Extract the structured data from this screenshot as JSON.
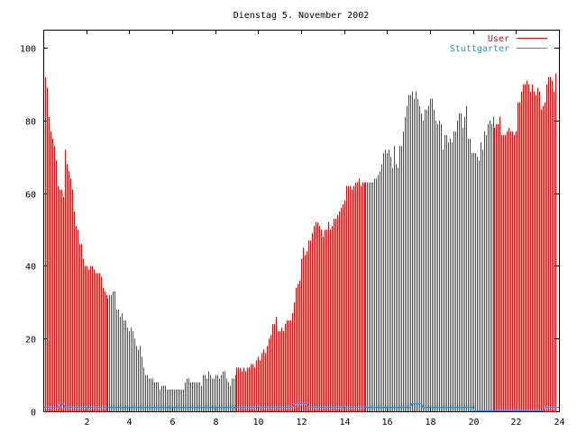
{
  "chart_data": {
    "type": "bar",
    "title": "Dienstag 5. November 2002",
    "xlabel": "",
    "ylabel": "",
    "xlim": [
      0,
      24
    ],
    "ylim": [
      0,
      105
    ],
    "x_step_hours": 0.0833333,
    "x_ticks": [
      2,
      4,
      6,
      8,
      10,
      12,
      14,
      16,
      18,
      20,
      22,
      24
    ],
    "x_tick_labels": [
      "2",
      "4",
      "6",
      "8",
      "10",
      "12",
      "14",
      "16",
      "18",
      "20",
      "22",
      "24"
    ],
    "y_ticks": [
      0,
      20,
      40,
      60,
      80,
      100
    ],
    "y_tick_labels": [
      "0",
      "20",
      "40",
      "60",
      "80",
      "100"
    ],
    "legend_placement": "top-right",
    "series": [
      {
        "name": "User",
        "style": "impulses",
        "color": "#ff0000",
        "values": [
          93,
          92,
          89,
          81,
          77,
          75,
          73,
          69,
          62,
          61,
          61,
          59,
          72,
          68,
          66,
          64,
          61,
          55,
          51,
          50,
          46,
          46,
          42,
          40,
          40,
          39,
          40,
          40,
          39,
          38,
          38,
          38,
          37,
          34,
          33,
          32,
          31,
          32,
          32,
          33,
          33,
          28,
          28,
          26,
          27,
          25,
          25,
          23,
          22,
          23,
          22,
          20,
          18,
          17,
          18,
          15,
          12,
          10,
          10,
          9,
          9,
          9,
          8,
          8,
          8,
          6,
          7,
          7,
          7,
          6,
          6,
          6,
          6,
          6,
          6,
          6,
          6,
          6,
          6,
          8,
          9,
          9,
          8,
          8,
          8,
          8,
          8,
          8,
          7,
          10,
          10,
          9,
          11,
          10,
          9,
          9,
          10,
          10,
          9,
          10,
          11,
          11,
          9,
          8,
          7,
          9,
          9,
          10,
          12,
          12,
          12,
          11,
          12,
          11,
          12,
          12,
          13,
          13,
          12,
          14,
          15,
          14,
          16,
          17,
          16,
          18,
          20,
          21,
          24,
          24,
          26,
          22,
          22,
          23,
          22,
          24,
          25,
          25,
          25,
          27,
          30,
          34,
          35,
          36,
          42,
          45,
          43,
          44,
          47,
          47,
          49,
          51,
          52,
          52,
          51,
          50,
          48,
          50,
          50,
          52,
          50,
          51,
          53,
          53,
          54,
          55,
          56,
          57,
          58,
          62,
          62,
          62,
          61,
          62,
          63,
          63,
          64,
          62,
          63,
          63,
          63,
          63,
          63,
          63,
          63,
          64,
          64,
          65,
          66,
          68,
          71,
          72,
          71,
          72,
          70,
          67,
          73,
          68,
          67,
          73,
          73,
          77,
          81,
          84,
          87,
          87,
          88,
          86,
          88,
          86,
          84,
          82,
          80,
          83,
          83,
          84,
          86,
          86,
          83,
          80,
          79,
          80,
          79,
          72,
          76,
          76,
          74,
          75,
          74,
          77,
          77,
          80,
          82,
          82,
          78,
          81,
          84,
          75,
          75,
          71,
          71,
          71,
          70,
          69,
          74,
          72,
          77,
          76,
          79,
          80,
          79,
          81,
          78,
          79,
          79,
          81,
          76,
          76,
          76,
          77,
          78,
          77,
          77,
          76,
          77,
          85,
          85,
          88,
          90,
          90,
          91,
          90,
          88,
          90,
          88,
          87,
          89,
          88,
          83,
          84,
          85,
          90,
          92,
          92,
          91,
          88,
          93
        ]
      },
      {
        "name": "Stuttgarter",
        "style": "lines",
        "color": "#1e90ff",
        "points": [
          [
            0,
            1
          ],
          [
            0.65,
            1
          ],
          [
            0.7,
            2
          ],
          [
            0.8,
            2
          ],
          [
            0.85,
            1
          ],
          [
            0.9,
            2
          ],
          [
            0.95,
            2
          ],
          [
            1.0,
            1
          ],
          [
            11.6,
            1
          ],
          [
            11.7,
            2
          ],
          [
            12.3,
            2
          ],
          [
            12.35,
            1
          ],
          [
            17.1,
            1
          ],
          [
            17.15,
            2
          ],
          [
            17.6,
            2
          ],
          [
            17.65,
            1
          ],
          [
            20.0,
            1
          ],
          [
            20.05,
            0
          ],
          [
            23.3,
            0
          ],
          [
            23.35,
            1
          ],
          [
            24,
            1
          ]
        ]
      }
    ]
  }
}
